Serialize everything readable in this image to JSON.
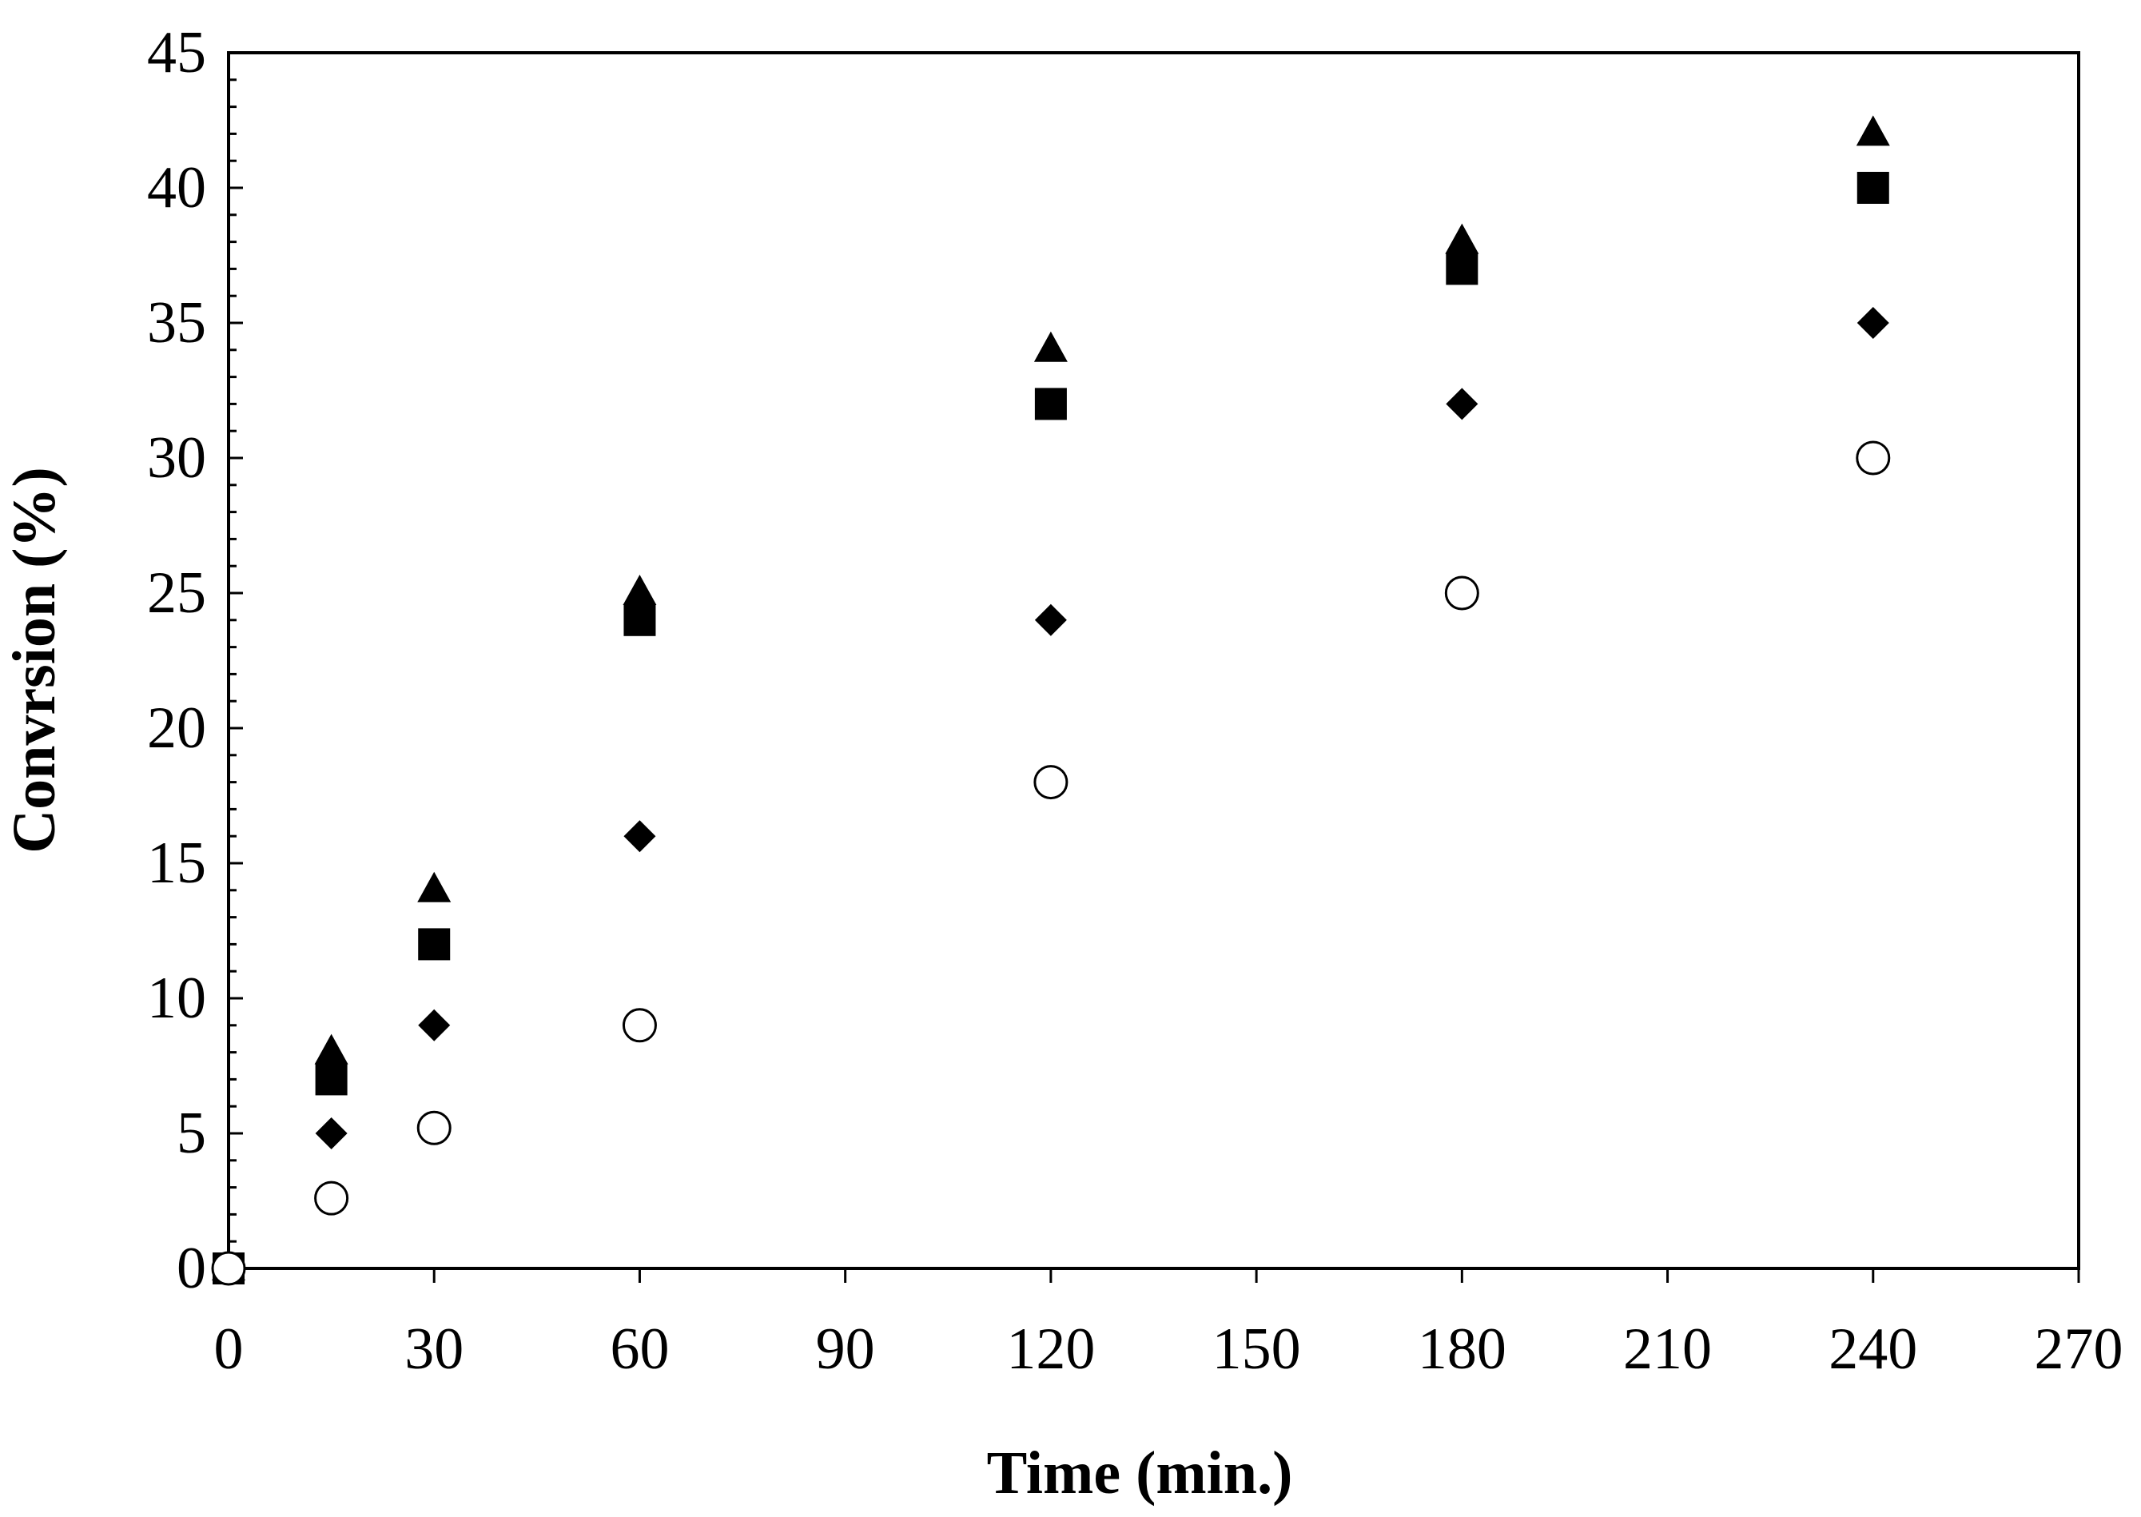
{
  "chart_data": {
    "type": "scatter",
    "title": "",
    "xlabel": "Time (min.)",
    "ylabel": "Convrsion (%)",
    "xlim": [
      0,
      270
    ],
    "ylim": [
      0,
      45
    ],
    "x_ticks": [
      "0",
      "30",
      "60",
      "90",
      "120",
      "150",
      "180",
      "210",
      "240",
      "270"
    ],
    "y_ticks": [
      "0",
      "5",
      "10",
      "15",
      "20",
      "25",
      "30",
      "35",
      "40",
      "45"
    ],
    "grid": false,
    "legend": false,
    "series": [
      {
        "marker": "triangle",
        "fill": "#000000",
        "points": [
          [
            0,
            0
          ],
          [
            15,
            8
          ],
          [
            30,
            14
          ],
          [
            60,
            25
          ],
          [
            120,
            34
          ],
          [
            180,
            38
          ],
          [
            240,
            42
          ]
        ]
      },
      {
        "marker": "square",
        "fill": "#000000",
        "points": [
          [
            0,
            0
          ],
          [
            15,
            7
          ],
          [
            30,
            12
          ],
          [
            60,
            24
          ],
          [
            120,
            32
          ],
          [
            180,
            37
          ],
          [
            240,
            40
          ]
        ]
      },
      {
        "marker": "diamond",
        "fill": "#000000",
        "points": [
          [
            0,
            0
          ],
          [
            15,
            5
          ],
          [
            30,
            9
          ],
          [
            60,
            16
          ],
          [
            120,
            24
          ],
          [
            180,
            32
          ],
          [
            240,
            35
          ]
        ]
      },
      {
        "marker": "circle-open",
        "fill": "#ffffff",
        "points": [
          [
            0,
            0
          ],
          [
            15,
            2.6
          ],
          [
            30,
            5.2
          ],
          [
            60,
            9
          ],
          [
            120,
            18
          ],
          [
            180,
            25
          ],
          [
            240,
            30
          ]
        ]
      }
    ]
  }
}
